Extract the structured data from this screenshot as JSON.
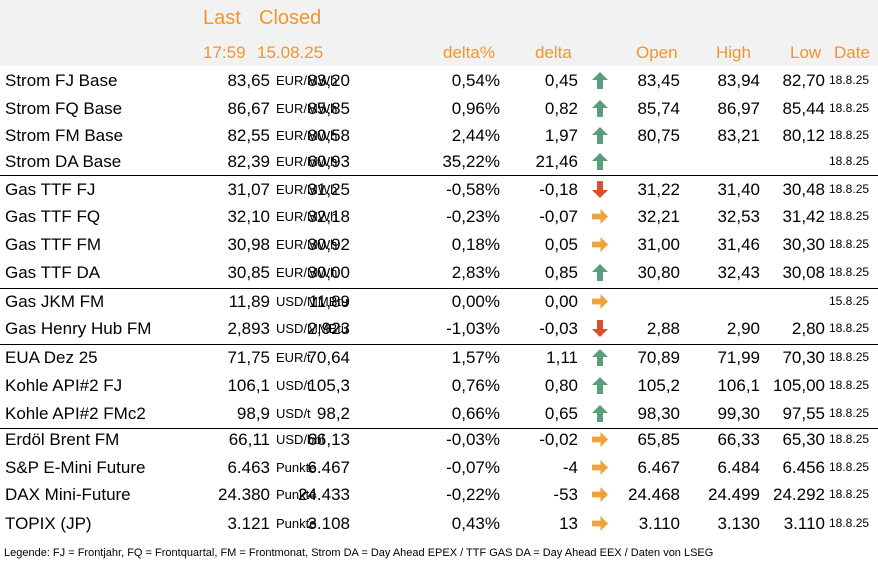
{
  "header": {
    "last_label": "Last",
    "closed_label": "Closed",
    "last_time": "17:59",
    "closed_date": "15.08.25",
    "delta_pct_label": "delta%",
    "delta_label": "delta",
    "open_label": "Open",
    "high_label": "High",
    "low_label": "Low",
    "date_label": "Date"
  },
  "colors": {
    "header_text": "#f0962c",
    "header_bg": "#f2f2f2",
    "arrow_up": "#5a9e7c",
    "arrow_down": "#d9502a",
    "arrow_flat": "#f0a33a"
  },
  "rows": [
    {
      "name": "Strom FJ Base",
      "last": "83,65",
      "closed": "83,20",
      "unit": "EUR/MWh",
      "delta_pct": "0,54%",
      "delta": "0,45",
      "trend": "up",
      "open": "83,45",
      "high": "83,94",
      "low": "82,70",
      "date": "18.8.25"
    },
    {
      "name": "Strom FQ Base",
      "last": "86,67",
      "closed": "85,85",
      "unit": "EUR/MWh",
      "delta_pct": "0,96%",
      "delta": "0,82",
      "trend": "up",
      "open": "85,74",
      "high": "86,97",
      "low": "85,44",
      "date": "18.8.25"
    },
    {
      "name": "Strom FM Base",
      "last": "82,55",
      "closed": "80,58",
      "unit": "EUR/MWh",
      "delta_pct": "2,44%",
      "delta": "1,97",
      "trend": "up",
      "open": "80,75",
      "high": "83,21",
      "low": "80,12",
      "date": "18.8.25"
    },
    {
      "name": "Strom DA Base",
      "last": "82,39",
      "closed": "60,93",
      "unit": "EUR/MWh",
      "delta_pct": "35,22%",
      "delta": "21,46",
      "trend": "up",
      "open": "",
      "high": "",
      "low": "",
      "date": "18.8.25"
    },
    {
      "name": "Gas TTF FJ",
      "last": "31,07",
      "closed": "31,25",
      "unit": "EUR/MWh",
      "delta_pct": "-0,58%",
      "delta": "-0,18",
      "trend": "down",
      "open": "31,22",
      "high": "31,40",
      "low": "30,48",
      "date": "18.8.25"
    },
    {
      "name": "Gas TTF FQ",
      "last": "32,10",
      "closed": "32,18",
      "unit": "EUR/MWh",
      "delta_pct": "-0,23%",
      "delta": "-0,07",
      "trend": "flat",
      "open": "32,21",
      "high": "32,53",
      "low": "31,42",
      "date": "18.8.25"
    },
    {
      "name": "Gas TTF FM",
      "last": "30,98",
      "closed": "30,92",
      "unit": "EUR/MWh",
      "delta_pct": "0,18%",
      "delta": "0,05",
      "trend": "flat",
      "open": "31,00",
      "high": "31,46",
      "low": "30,30",
      "date": "18.8.25"
    },
    {
      "name": "Gas TTF DA",
      "last": "30,85",
      "closed": "30,00",
      "unit": "EUR/MWh",
      "delta_pct": "2,83%",
      "delta": "0,85",
      "trend": "up",
      "open": "30,80",
      "high": "32,43",
      "low": "30,08",
      "date": "18.8.25"
    },
    {
      "name": "Gas JKM FM",
      "last": "11,89",
      "closed": "11,89",
      "unit": "USD/MMBtu",
      "delta_pct": "0,00%",
      "delta": "0,00",
      "trend": "flat",
      "open": "",
      "high": "",
      "low": "",
      "date": "15.8.25"
    },
    {
      "name": "Gas Henry Hub FM",
      "last": "2,893",
      "closed": "2,923",
      "unit": "USD/MMBtu",
      "delta_pct": "-1,03%",
      "delta": "-0,03",
      "trend": "down",
      "open": "2,88",
      "high": "2,90",
      "low": "2,80",
      "date": "18.8.25"
    },
    {
      "name": "EUA Dez 25",
      "last": "71,75",
      "closed": "70,64",
      "unit": "EUR/t",
      "delta_pct": "1,57%",
      "delta": "1,11",
      "trend": "up",
      "open": "70,89",
      "high": "71,99",
      "low": "70,30",
      "date": "18.8.25"
    },
    {
      "name": "Kohle API#2 FJ",
      "last": "106,1",
      "closed": "105,3",
      "unit": "USD/t",
      "delta_pct": "0,76%",
      "delta": "0,80",
      "trend": "up",
      "open": "105,2",
      "high": "106,1",
      "low": "105,00",
      "date": "18.8.25"
    },
    {
      "name": "Kohle API#2 FMc2",
      "last": "98,9",
      "closed": "98,2",
      "unit": "USD/t",
      "delta_pct": "0,66%",
      "delta": "0,65",
      "trend": "up",
      "open": "98,30",
      "high": "99,30",
      "low": "97,55",
      "date": "18.8.25"
    },
    {
      "name": "Erdöl Brent FM",
      "last": "66,11",
      "closed": "66,13",
      "unit": "USD/bbl",
      "delta_pct": "-0,03%",
      "delta": "-0,02",
      "trend": "flat",
      "open": "65,85",
      "high": "66,33",
      "low": "65,30",
      "date": "18.8.25"
    },
    {
      "name": "S&P E-Mini Future",
      "last": "6.463",
      "closed": "6.467",
      "unit": "Punkte",
      "delta_pct": "-0,07%",
      "delta": "-4",
      "trend": "flat",
      "open": "6.467",
      "high": "6.484",
      "low": "6.456",
      "date": "18.8.25"
    },
    {
      "name": "DAX Mini-Future",
      "last": "24.380",
      "closed": "24.433",
      "unit": "Punkte",
      "delta_pct": "-0,22%",
      "delta": "-53",
      "trend": "flat",
      "open": "24.468",
      "high": "24.499",
      "low": "24.292",
      "date": "18.8.25"
    },
    {
      "name": "TOPIX (JP)",
      "last": "3.121",
      "closed": "3.108",
      "unit": "Punkte",
      "delta_pct": "0,43%",
      "delta": "13",
      "trend": "flat",
      "open": "3.110",
      "high": "3.130",
      "low": "3.110",
      "date": "18.8.25"
    }
  ],
  "legend": "Legende: FJ = Frontjahr, FQ = Frontquartal, FM = Frontmonat, Strom DA = Day Ahead EPEX / TTF GAS DA = Day Ahead EEX / Daten von LSEG"
}
